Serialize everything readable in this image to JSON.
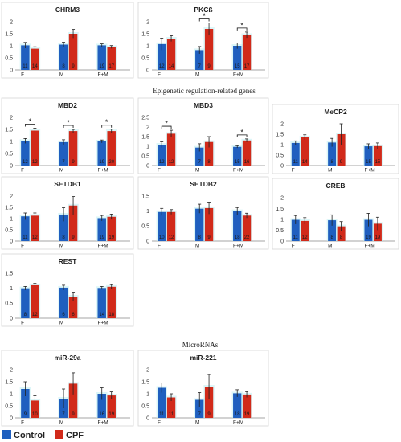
{
  "colors": {
    "control": "#1f5fbf",
    "cpf": "#d12a1a"
  },
  "legend": {
    "control": "Control",
    "cpf": "CPF"
  },
  "sections": {
    "epigenetic": "Epigenetic regulation-related genes",
    "micro": "MicroRNAs"
  },
  "chart_data": [
    {
      "type": "bar",
      "title": "CHRM3",
      "categories": [
        "F",
        "M",
        "F+M"
      ],
      "ylim": [
        0,
        2
      ],
      "yticks": [
        "0",
        "0.5",
        "1",
        "1.5",
        "2"
      ],
      "series": [
        {
          "values": [
            1.02,
            1.05,
            1.02
          ],
          "err": [
            0.12,
            0.1,
            0.06
          ],
          "n": [
            "11",
            "8",
            "19"
          ]
        },
        {
          "values": [
            0.88,
            1.5,
            0.95
          ],
          "err": [
            0.08,
            0.18,
            0.06
          ],
          "n": [
            "14",
            "9",
            "17"
          ]
        }
      ],
      "sig": []
    },
    {
      "type": "bar",
      "title": "PKCß",
      "categories": [
        "F",
        "M",
        "F+M"
      ],
      "ylim": [
        0,
        2
      ],
      "yticks": [
        "0",
        "0.5",
        "1",
        "1.5",
        "2"
      ],
      "series": [
        {
          "values": [
            1.07,
            0.82,
            1.0
          ],
          "err": [
            0.25,
            0.15,
            0.12
          ],
          "n": [
            "12",
            "7",
            "15"
          ]
        },
        {
          "values": [
            1.3,
            1.7,
            1.45
          ],
          "err": [
            0.12,
            0.25,
            0.12
          ],
          "n": [
            "14",
            "9",
            "17"
          ]
        }
      ],
      "sig": [
        1,
        2
      ]
    },
    {
      "type": "bar",
      "title": "MBD2",
      "categories": [
        "F",
        "M",
        "F+M"
      ],
      "ylim": [
        0,
        2
      ],
      "yticks": [
        "0",
        "0.5",
        "1",
        "1.5",
        "2"
      ],
      "series": [
        {
          "values": [
            1.02,
            0.97,
            1.0
          ],
          "err": [
            0.1,
            0.1,
            0.06
          ],
          "n": [
            "12",
            "7",
            "19"
          ]
        },
        {
          "values": [
            1.45,
            1.43,
            1.43
          ],
          "err": [
            0.1,
            0.07,
            0.08
          ],
          "n": [
            "12",
            "9",
            "20"
          ]
        }
      ],
      "sig": [
        0,
        1,
        2
      ]
    },
    {
      "type": "bar",
      "title": "MBD3",
      "categories": [
        "F",
        "M",
        "F+M"
      ],
      "ylim": [
        0,
        2.5
      ],
      "yticks": [
        "0",
        "0.5",
        "1",
        "1.5",
        "2",
        "2.5"
      ],
      "series": [
        {
          "values": [
            1.08,
            0.93,
            0.97
          ],
          "err": [
            0.15,
            0.2,
            0.06
          ],
          "n": [
            "12",
            "7",
            "15"
          ]
        },
        {
          "values": [
            1.65,
            1.22,
            1.3
          ],
          "err": [
            0.18,
            0.28,
            0.08
          ],
          "n": [
            "12",
            "8",
            "16"
          ]
        }
      ],
      "sig": [
        0,
        2
      ]
    },
    {
      "type": "bar",
      "title": "MeCP2",
      "categories": [
        "F",
        "M",
        "F+M"
      ],
      "ylim": [
        0,
        2
      ],
      "yticks": [
        "0",
        "0.5",
        "1",
        "1.5",
        "2"
      ],
      "series": [
        {
          "values": [
            1.08,
            1.1,
            0.92
          ],
          "err": [
            0.1,
            0.2,
            0.12
          ],
          "n": [
            "11",
            "8",
            "15"
          ]
        },
        {
          "values": [
            1.35,
            1.5,
            0.93
          ],
          "err": [
            0.12,
            0.5,
            0.15
          ],
          "n": [
            "14",
            "9",
            "15"
          ]
        }
      ],
      "sig": []
    },
    {
      "type": "bar",
      "title": "SETDB1",
      "categories": [
        "F",
        "M",
        "F+M"
      ],
      "ylim": [
        0,
        2
      ],
      "yticks": [
        "0",
        "0.5",
        "1",
        "1.5",
        "2"
      ],
      "series": [
        {
          "values": [
            1.1,
            1.18,
            1.02
          ],
          "err": [
            0.15,
            0.3,
            0.12
          ],
          "n": [
            "11",
            "8",
            "19"
          ]
        },
        {
          "values": [
            1.13,
            1.58,
            1.08
          ],
          "err": [
            0.12,
            0.4,
            0.12
          ],
          "n": [
            "12",
            "9",
            "19"
          ]
        }
      ],
      "sig": []
    },
    {
      "type": "bar",
      "title": "SETDB2",
      "categories": [
        "F",
        "M",
        "F+M"
      ],
      "ylim": [
        0,
        1.5
      ],
      "yticks": [
        "0",
        "0.5",
        "1",
        "1.5"
      ],
      "series": [
        {
          "values": [
            0.97,
            1.08,
            1.0
          ],
          "err": [
            0.12,
            0.15,
            0.12
          ],
          "n": [
            "10",
            "8",
            "18"
          ]
        },
        {
          "values": [
            0.97,
            1.1,
            0.85
          ],
          "err": [
            0.08,
            0.2,
            0.08
          ],
          "n": [
            "12",
            "9",
            "22"
          ]
        }
      ],
      "sig": []
    },
    {
      "type": "bar",
      "title": "CREB",
      "categories": [
        "F",
        "M",
        "F+M"
      ],
      "ylim": [
        0,
        2
      ],
      "yticks": [
        "0",
        "0.5",
        "1",
        "1.5",
        "2"
      ],
      "series": [
        {
          "values": [
            0.98,
            0.96,
            0.98
          ],
          "err": [
            0.2,
            0.25,
            0.3
          ],
          "n": [
            "11",
            "8",
            "19"
          ]
        },
        {
          "values": [
            0.93,
            0.68,
            0.8
          ],
          "err": [
            0.15,
            0.22,
            0.3
          ],
          "n": [
            "12",
            "8",
            "19"
          ]
        }
      ],
      "sig": []
    },
    {
      "type": "bar",
      "title": "REST",
      "categories": [
        "F",
        "M",
        "F+M"
      ],
      "ylim": [
        0,
        1.5
      ],
      "yticks": [
        "0",
        "0.5",
        "1",
        "1.5"
      ],
      "series": [
        {
          "values": [
            1.0,
            1.02,
            1.01
          ],
          "err": [
            0.06,
            0.08,
            0.05
          ],
          "n": [
            "8",
            "6",
            "14"
          ]
        },
        {
          "values": [
            1.1,
            0.72,
            1.05
          ],
          "err": [
            0.06,
            0.15,
            0.07
          ],
          "n": [
            "12",
            "6",
            "18"
          ]
        }
      ],
      "sig": []
    },
    {
      "type": "bar",
      "title": "miR-29a",
      "categories": [
        "F",
        "M",
        "F+M"
      ],
      "ylim": [
        0,
        2
      ],
      "yticks": [
        "0",
        "0.5",
        "1",
        "1.5",
        "2"
      ],
      "series": [
        {
          "values": [
            1.2,
            0.8,
            1.0
          ],
          "err": [
            0.3,
            0.4,
            0.25
          ],
          "n": [
            "9",
            "7",
            "16"
          ]
        },
        {
          "values": [
            0.72,
            1.42,
            0.93
          ],
          "err": [
            0.2,
            0.45,
            0.15
          ],
          "n": [
            "10",
            "9",
            "19"
          ]
        }
      ],
      "sig": []
    },
    {
      "type": "bar",
      "title": "miR-221",
      "categories": [
        "F",
        "M",
        "F+M"
      ],
      "ylim": [
        0,
        2
      ],
      "yticks": [
        "0",
        "0.5",
        "1",
        "1.5",
        "2"
      ],
      "series": [
        {
          "values": [
            1.25,
            0.75,
            1.02
          ],
          "err": [
            0.2,
            0.3,
            0.15
          ],
          "n": [
            "11",
            "7",
            "18"
          ]
        },
        {
          "values": [
            0.85,
            1.3,
            0.97
          ],
          "err": [
            0.15,
            0.5,
            0.12
          ],
          "n": [
            "11",
            "9",
            "19"
          ]
        }
      ],
      "sig": []
    }
  ]
}
